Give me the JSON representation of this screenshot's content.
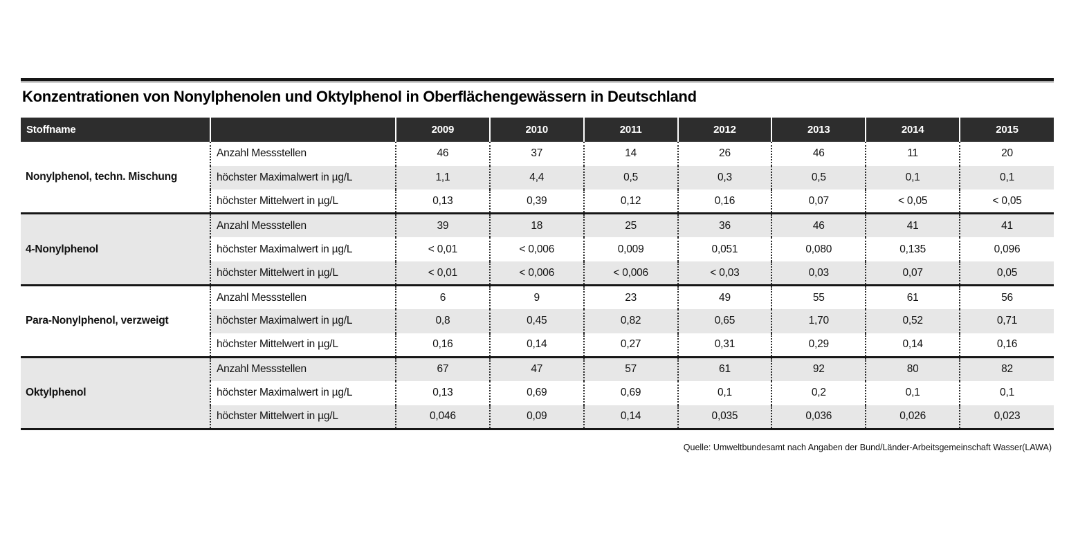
{
  "title": "Konzentrationen von Nonylphenolen und Oktylphenol in Oberflächengewässern in Deutschland",
  "source": "Quelle: Umweltbundesamt nach Angaben der Bund/Länder-Arbeitsgemeinschaft Wasser(LAWA)",
  "colors": {
    "header_bg": "#2d2d2d",
    "header_text": "#ffffff",
    "stripe": "#e7e7e7",
    "rule": "#161616"
  },
  "chart_data": {
    "type": "table",
    "title": "Konzentrationen von Nonylphenolen und Oktylphenol in Oberflächengewässern in Deutschland",
    "columns": [
      "Stoffname",
      "",
      "2009",
      "2010",
      "2011",
      "2012",
      "2013",
      "2014",
      "2015"
    ],
    "metric_labels": [
      "Anzahl Messstellen",
      "höchster Maximalwert in µg/L",
      "höchster Mittelwert in µg/L"
    ],
    "groups": [
      {
        "name": "Nonylphenol, techn. Mischung",
        "rows": [
          {
            "label": "Anzahl Messstellen",
            "values": [
              "46",
              "37",
              "14",
              "26",
              "46",
              "11",
              "20"
            ]
          },
          {
            "label": "höchster Maximalwert in µg/L",
            "values": [
              "1,1",
              "4,4",
              "0,5",
              "0,3",
              "0,5",
              "0,1",
              "0,1"
            ]
          },
          {
            "label": "höchster Mittelwert in µg/L",
            "values": [
              "0,13",
              "0,39",
              "0,12",
              "0,16",
              "0,07",
              "< 0,05",
              "< 0,05"
            ]
          }
        ]
      },
      {
        "name": "4-Nonylphenol",
        "rows": [
          {
            "label": "Anzahl Messstellen",
            "values": [
              "39",
              "18",
              "25",
              "36",
              "46",
              "41",
              "41"
            ]
          },
          {
            "label": "höchster Maximalwert in µg/L",
            "values": [
              "< 0,01",
              "< 0,006",
              "0,009",
              "0,051",
              "0,080",
              "0,135",
              "0,096"
            ]
          },
          {
            "label": "höchster Mittelwert in µg/L",
            "values": [
              "< 0,01",
              "< 0,006",
              "< 0,006",
              "< 0,03",
              "0,03",
              "0,07",
              "0,05"
            ]
          }
        ]
      },
      {
        "name": "Para-Nonylphenol, verzweigt",
        "rows": [
          {
            "label": "Anzahl Messstellen",
            "values": [
              "6",
              "9",
              "23",
              "49",
              "55",
              "61",
              "56"
            ]
          },
          {
            "label": "höchster Maximalwert in µg/L",
            "values": [
              "0,8",
              "0,45",
              "0,82",
              "0,65",
              "1,70",
              "0,52",
              "0,71"
            ]
          },
          {
            "label": "höchster Mittelwert in µg/L",
            "values": [
              "0,16",
              "0,14",
              "0,27",
              "0,31",
              "0,29",
              "0,14",
              "0,16"
            ]
          }
        ]
      },
      {
        "name": "Oktylphenol",
        "rows": [
          {
            "label": "Anzahl Messstellen",
            "values": [
              "67",
              "47",
              "57",
              "61",
              "92",
              "80",
              "82"
            ]
          },
          {
            "label": "höchster Maximalwert in µg/L",
            "values": [
              "0,13",
              "0,69",
              "0,69",
              "0,1",
              "0,2",
              "0,1",
              "0,1"
            ]
          },
          {
            "label": "höchster Mittelwert in µg/L",
            "values": [
              "0,046",
              "0,09",
              "0,14",
              "0,035",
              "0,036",
              "0,026",
              "0,023"
            ]
          }
        ]
      }
    ]
  }
}
